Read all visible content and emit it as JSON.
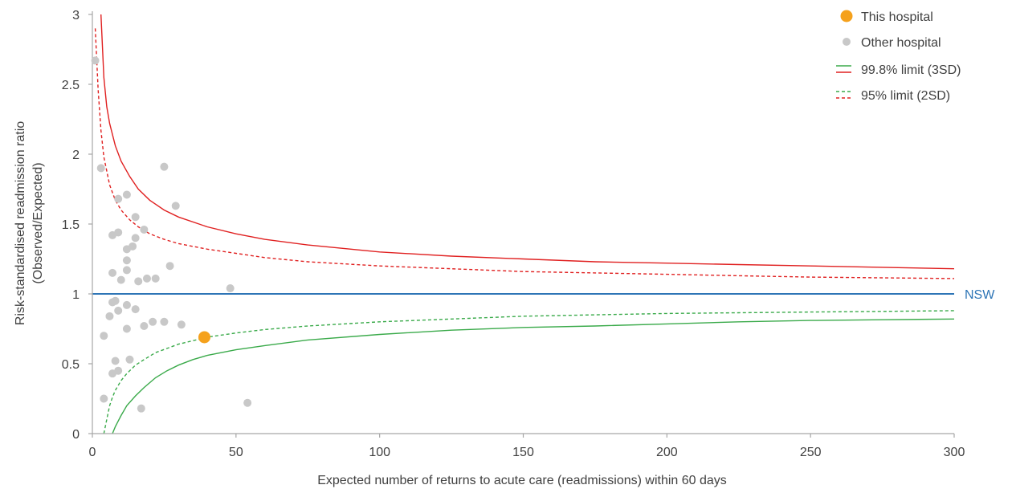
{
  "chart_data": {
    "type": "scatter",
    "title": "",
    "xlabel": "Expected number of returns to acute care (readmissions) within 60 days",
    "ylabel_lines": [
      "Risk-standardised readmission ratio",
      "(Observed/Expected)"
    ],
    "xlim": [
      0,
      300
    ],
    "ylim": [
      0,
      3
    ],
    "x_ticks": [
      0,
      50,
      100,
      150,
      200,
      250,
      300
    ],
    "y_ticks": [
      0,
      0.5,
      1,
      1.5,
      2,
      2.5,
      3
    ],
    "x_tick_labels": [
      "0",
      "50",
      "100",
      "150",
      "200",
      "250",
      "300"
    ],
    "y_tick_labels": [
      "0",
      "0.5",
      "1",
      "1.5",
      "2",
      "2.5",
      "3"
    ],
    "grid": false,
    "legend_position": "top-right",
    "reference_line": {
      "value": 1,
      "label": "NSW",
      "color": "#2e75b6"
    },
    "legend": [
      {
        "key": "this",
        "label": "This hospital"
      },
      {
        "key": "other",
        "label": "Other hospital"
      },
      {
        "key": "limit3",
        "label": "99.8% limit (3SD)"
      },
      {
        "key": "limit2",
        "label": "95% limit (2SD)"
      }
    ],
    "colors": {
      "this_hospital": "#f5a11c",
      "other_hospital": "#c8c8c8",
      "upper_limit": "#e02020",
      "lower_limit": "#3aaa4a",
      "reference": "#2e75b6",
      "axis": "#a6a6a6",
      "text": "#404040"
    },
    "series": [
      {
        "name": "This hospital",
        "points": [
          [
            39,
            0.69
          ]
        ]
      },
      {
        "name": "Other hospital",
        "points": [
          [
            1,
            2.67
          ],
          [
            3,
            1.9
          ],
          [
            4,
            0.7
          ],
          [
            4,
            0.25
          ],
          [
            6,
            0.84
          ],
          [
            7,
            1.42
          ],
          [
            7,
            1.15
          ],
          [
            7,
            0.94
          ],
          [
            7,
            0.43
          ],
          [
            8,
            0.95
          ],
          [
            8,
            0.52
          ],
          [
            9,
            1.68
          ],
          [
            9,
            1.44
          ],
          [
            9,
            0.88
          ],
          [
            9,
            0.45
          ],
          [
            10,
            1.1
          ],
          [
            12,
            1.71
          ],
          [
            12,
            1.32
          ],
          [
            12,
            1.24
          ],
          [
            12,
            1.17
          ],
          [
            12,
            0.92
          ],
          [
            12,
            0.75
          ],
          [
            13,
            0.53
          ],
          [
            14,
            1.34
          ],
          [
            15,
            1.55
          ],
          [
            15,
            1.4
          ],
          [
            15,
            0.89
          ],
          [
            16,
            1.09
          ],
          [
            17,
            0.18
          ],
          [
            18,
            1.46
          ],
          [
            18,
            0.77
          ],
          [
            19,
            1.11
          ],
          [
            21,
            0.8
          ],
          [
            22,
            1.11
          ],
          [
            25,
            1.91
          ],
          [
            25,
            0.8
          ],
          [
            27,
            1.2
          ],
          [
            29,
            1.63
          ],
          [
            31,
            0.78
          ],
          [
            48,
            1.04
          ],
          [
            54,
            0.22
          ]
        ]
      }
    ],
    "limit_lines": [
      {
        "legend_key": "limit3",
        "side": "upper",
        "style": "solid",
        "points": [
          [
            3,
            3.0
          ],
          [
            4,
            2.55
          ],
          [
            5,
            2.34
          ],
          [
            6,
            2.22
          ],
          [
            8,
            2.06
          ],
          [
            10,
            1.95
          ],
          [
            13,
            1.84
          ],
          [
            16,
            1.75
          ],
          [
            20,
            1.67
          ],
          [
            25,
            1.6
          ],
          [
            30,
            1.55
          ],
          [
            40,
            1.48
          ],
          [
            50,
            1.43
          ],
          [
            60,
            1.39
          ],
          [
            75,
            1.35
          ],
          [
            100,
            1.3
          ],
          [
            125,
            1.27
          ],
          [
            150,
            1.25
          ],
          [
            175,
            1.23
          ],
          [
            200,
            1.22
          ],
          [
            225,
            1.21
          ],
          [
            250,
            1.2
          ],
          [
            275,
            1.19
          ],
          [
            300,
            1.18
          ]
        ]
      },
      {
        "legend_key": "limit2",
        "side": "upper",
        "style": "dashed",
        "points": [
          [
            1,
            2.9
          ],
          [
            2,
            2.46
          ],
          [
            3,
            2.17
          ],
          [
            4,
            1.98
          ],
          [
            6,
            1.78
          ],
          [
            8,
            1.67
          ],
          [
            10,
            1.6
          ],
          [
            13,
            1.53
          ],
          [
            16,
            1.48
          ],
          [
            20,
            1.43
          ],
          [
            25,
            1.39
          ],
          [
            30,
            1.36
          ],
          [
            40,
            1.32
          ],
          [
            50,
            1.29
          ],
          [
            60,
            1.26
          ],
          [
            75,
            1.23
          ],
          [
            100,
            1.2
          ],
          [
            125,
            1.18
          ],
          [
            150,
            1.16
          ],
          [
            175,
            1.15
          ],
          [
            200,
            1.14
          ],
          [
            225,
            1.13
          ],
          [
            250,
            1.12
          ],
          [
            275,
            1.115
          ],
          [
            300,
            1.11
          ]
        ]
      },
      {
        "legend_key": "limit3",
        "side": "lower",
        "style": "solid",
        "points": [
          [
            7,
            0.0
          ],
          [
            8,
            0.05
          ],
          [
            9,
            0.09
          ],
          [
            10,
            0.13
          ],
          [
            12,
            0.2
          ],
          [
            15,
            0.27
          ],
          [
            18,
            0.33
          ],
          [
            22,
            0.4
          ],
          [
            26,
            0.45
          ],
          [
            30,
            0.49
          ],
          [
            35,
            0.53
          ],
          [
            40,
            0.56
          ],
          [
            50,
            0.6
          ],
          [
            60,
            0.63
          ],
          [
            75,
            0.67
          ],
          [
            100,
            0.71
          ],
          [
            125,
            0.74
          ],
          [
            150,
            0.76
          ],
          [
            175,
            0.77
          ],
          [
            200,
            0.785
          ],
          [
            225,
            0.8
          ],
          [
            250,
            0.81
          ],
          [
            275,
            0.815
          ],
          [
            300,
            0.82
          ]
        ]
      },
      {
        "legend_key": "limit2",
        "side": "lower",
        "style": "dashed",
        "points": [
          [
            4,
            0.0
          ],
          [
            5,
            0.1
          ],
          [
            6,
            0.2
          ],
          [
            7,
            0.26
          ],
          [
            8,
            0.31
          ],
          [
            10,
            0.38
          ],
          [
            12,
            0.43
          ],
          [
            15,
            0.49
          ],
          [
            18,
            0.53
          ],
          [
            22,
            0.58
          ],
          [
            26,
            0.61
          ],
          [
            30,
            0.64
          ],
          [
            35,
            0.665
          ],
          [
            40,
            0.69
          ],
          [
            50,
            0.72
          ],
          [
            60,
            0.745
          ],
          [
            75,
            0.77
          ],
          [
            100,
            0.8
          ],
          [
            125,
            0.82
          ],
          [
            150,
            0.84
          ],
          [
            175,
            0.85
          ],
          [
            200,
            0.86
          ],
          [
            225,
            0.865
          ],
          [
            250,
            0.87
          ],
          [
            275,
            0.875
          ],
          [
            300,
            0.88
          ]
        ]
      }
    ]
  }
}
